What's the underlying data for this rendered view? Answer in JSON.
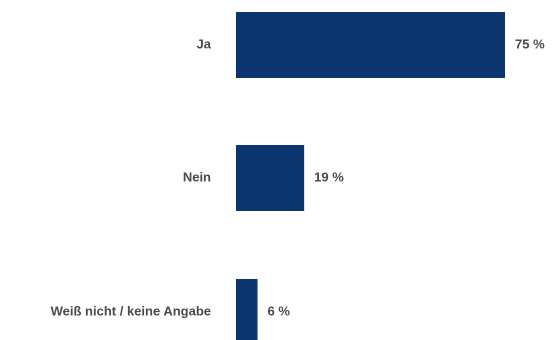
{
  "chart_data": {
    "type": "bar",
    "orientation": "horizontal",
    "categories": [
      "Ja",
      "Nein",
      "Weiß nicht / keine Angabe"
    ],
    "values": [
      75,
      19,
      6
    ],
    "value_labels": [
      "75 %",
      "19 %",
      "6 %"
    ],
    "unit": "%",
    "xlim": [
      0,
      75
    ],
    "grid": false,
    "legend": "none",
    "bar_color": "#0b356e"
  }
}
